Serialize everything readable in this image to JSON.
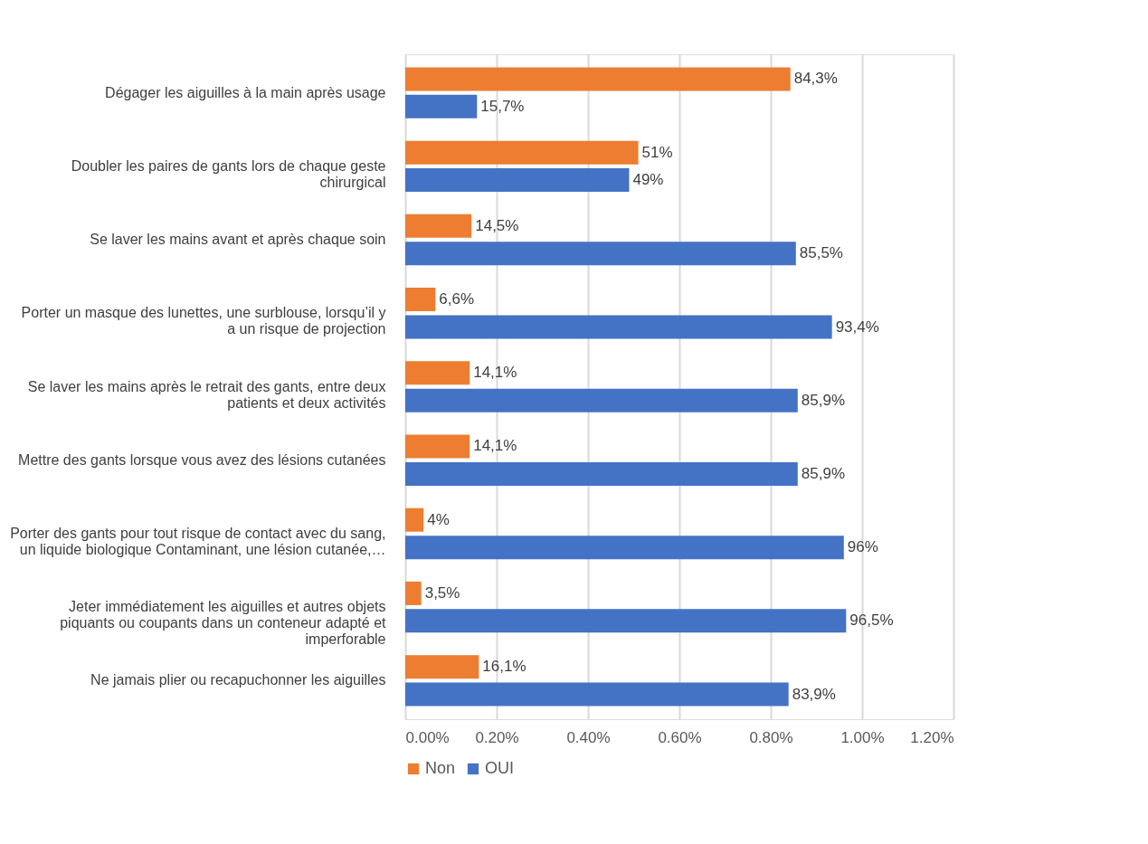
{
  "chart_data": {
    "type": "bar",
    "orientation": "horizontal",
    "categories": [
      "Dégager les aiguilles à la main après usage",
      "Doubler les paires de gants lors de chaque geste chirurgical",
      "Se laver les mains avant et après chaque soin",
      "Porter un masque des lunettes, une surblouse, lorsqu’il y a un risque de projection",
      "Se laver les mains après le retrait des gants, entre deux patients et deux activités",
      "Mettre des gants lorsque vous avez des lésions cutanées",
      "Porter des gants pour tout risque de contact avec du sang, un liquide biologique Contaminant, une lésion cutanée,…",
      "Jeter immédiatement les aiguilles et autres objets piquants ou coupants dans un conteneur adapté et imperforable",
      "Ne jamais plier ou recapuchonner les aiguilles"
    ],
    "series": [
      {
        "name": "Non",
        "color": "#ed7d31",
        "values": [
          0.843,
          0.51,
          0.145,
          0.066,
          0.141,
          0.141,
          0.04,
          0.035,
          0.161
        ],
        "value_labels": [
          "84,3%",
          "51%",
          "14,5%",
          "6,6%",
          "14,1%",
          "14,1%",
          "4%",
          "3,5%",
          "16,1%"
        ]
      },
      {
        "name": "OUI",
        "color": "#4472c4",
        "values": [
          0.157,
          0.49,
          0.855,
          0.934,
          0.859,
          0.859,
          0.96,
          0.965,
          0.839
        ],
        "value_labels": [
          "15,7%",
          "49%",
          "85,5%",
          "93,4%",
          "85,9%",
          "85,9%",
          "96%",
          "96,5%",
          "83,9%"
        ]
      }
    ],
    "xlim": [
      0,
      1.2
    ],
    "xticks": [
      {
        "value": 0,
        "label": "0.00%"
      },
      {
        "value": 0.2,
        "label": "0.20%"
      },
      {
        "value": 0.4,
        "label": "0.40%"
      },
      {
        "value": 0.6,
        "label": "0.60%"
      },
      {
        "value": 0.8,
        "label": "0.80%"
      },
      {
        "value": 1,
        "label": "1.00%"
      },
      {
        "value": 1.2,
        "label": "1.20%"
      }
    ],
    "grid": "x",
    "legend": "bottom"
  }
}
